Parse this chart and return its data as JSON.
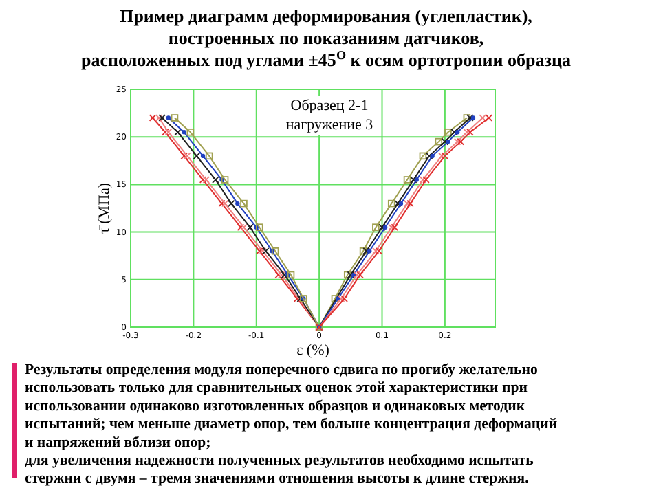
{
  "chart_data": {
    "type": "line",
    "title": "Пример диаграмм деформирования (углепластик),\nпостроенных по показаниям датчиков,\nрасположенных под углами ±45$^{O}$ к  осям ортотропии образца",
    "xlabel": "ε (%)",
    "ylabel": "τ̄ (МПа)",
    "xlim": [
      -0.3,
      0.28
    ],
    "xticks": [
      -0.3,
      -0.2,
      -0.1,
      0,
      0.1,
      0.2
    ],
    "ylim": [
      0,
      25
    ],
    "yticks": [
      0,
      5,
      10,
      15,
      20,
      25
    ],
    "grid": true,
    "line_style": "solid",
    "series": [
      {
        "color": "#e03030",
        "marker": "cross",
        "x": [
          0,
          -0.035,
          -0.065,
          -0.095,
          -0.125,
          -0.155,
          -0.185,
          -0.215,
          -0.245,
          -0.265
        ],
        "values": [
          0,
          3,
          5.5,
          8,
          10.5,
          13,
          15.5,
          18,
          20.5,
          22
        ]
      },
      {
        "color": "#f08080",
        "marker": "cross",
        "x": [
          0,
          -0.03,
          -0.06,
          -0.09,
          -0.12,
          -0.15,
          -0.18,
          -0.21,
          -0.24,
          -0.255
        ],
        "values": [
          0,
          null,
          5.5,
          8,
          10.5,
          13,
          15.5,
          18,
          20.5,
          22
        ]
      },
      {
        "color": "#202020",
        "marker": "cross",
        "x": [
          0,
          -0.03,
          -0.055,
          -0.085,
          -0.11,
          -0.14,
          -0.165,
          -0.195,
          -0.225,
          -0.25
        ],
        "values": [
          0,
          3,
          5.5,
          8,
          10.5,
          13,
          15.5,
          18,
          20.5,
          22
        ]
      },
      {
        "color": "#2040c0",
        "marker": "circle",
        "x": [
          0,
          -0.025,
          -0.05,
          -0.075,
          -0.1,
          -0.13,
          -0.155,
          -0.185,
          -0.215,
          -0.24
        ],
        "values": [
          0,
          3,
          5.5,
          8,
          10.5,
          13,
          15.5,
          18,
          20.5,
          22
        ]
      },
      {
        "color": "#a0a050",
        "marker": "square",
        "x": [
          0,
          -0.025,
          -0.045,
          -0.07,
          -0.095,
          -0.12,
          -0.15,
          -0.175,
          -0.205,
          -0.23
        ],
        "values": [
          0,
          3,
          5.5,
          8,
          10.5,
          13,
          15.5,
          18,
          20.5,
          22
        ]
      },
      {
        "color": "#a0a050",
        "marker": "square",
        "x": [
          0,
          0.025,
          0.045,
          0.07,
          0.09,
          0.115,
          0.14,
          0.165,
          0.19,
          0.205,
          0.235
        ],
        "values": [
          0,
          3,
          5.5,
          8,
          10.5,
          13,
          15.5,
          18,
          19.5,
          20.5,
          22
        ]
      },
      {
        "color": "#202020",
        "marker": "cross",
        "x": [
          0,
          0.03,
          0.05,
          0.075,
          0.1,
          0.125,
          0.15,
          0.175,
          0.2,
          0.215,
          0.24
        ],
        "values": [
          0,
          null,
          5.5,
          8,
          10.5,
          13,
          15.5,
          18,
          19.5,
          20.5,
          22
        ]
      },
      {
        "color": "#2040c0",
        "marker": "circle",
        "x": [
          0,
          0.03,
          0.055,
          0.08,
          0.105,
          0.13,
          0.155,
          0.18,
          0.205,
          0.22,
          0.245
        ],
        "values": [
          0,
          3,
          5.5,
          8,
          10.5,
          13,
          15.5,
          18,
          19.5,
          20.5,
          22
        ]
      },
      {
        "color": "#f08080",
        "marker": "cross",
        "x": [
          0,
          0.035,
          0.06,
          0.09,
          0.115,
          0.14,
          0.165,
          0.195,
          0.22,
          0.235,
          0.26
        ],
        "values": [
          0,
          3,
          5.5,
          8,
          10.5,
          13,
          15.5,
          18,
          19.5,
          20.5,
          22
        ]
      },
      {
        "color": "#e03030",
        "marker": "cross",
        "x": [
          0,
          0.04,
          0.065,
          0.095,
          0.12,
          0.145,
          0.17,
          0.2,
          0.225,
          0.24,
          0.27
        ],
        "values": [
          0,
          3,
          5.5,
          8,
          10.5,
          13,
          15.5,
          18,
          19.5,
          20.5,
          22
        ]
      }
    ],
    "annotations": [
      "Образец 2-1\nнагружение 3",
      "Результаты определения модуля поперечного сдвига по прогибу желательно\nиспользовать только для сравнительных оценок этой характеристики при\nиспользовании одинаково изготовленных образцов и одинаковых методик\nиспытаний;  чем меньше диаметр опор, тем больше концентрация деформаций\nи напряжений вблизи опор;\nдля увеличения надежности полученных результатов необходимо испытать\nстержни с двумя – тремя значениями отношения высоты к длине стержня."
    ]
  }
}
